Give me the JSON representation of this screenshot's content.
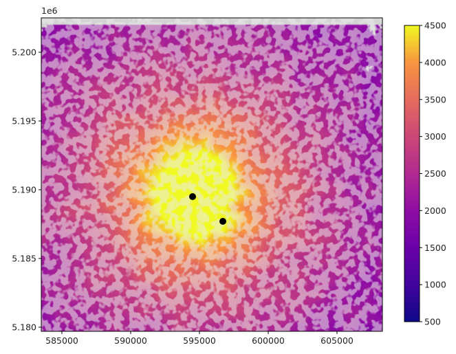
{
  "chart_data": {
    "type": "heatmap",
    "title": "",
    "xlabel": "",
    "ylabel": "",
    "y_offset_label": "1e6",
    "xlim": [
      583500,
      608300
    ],
    "ylim": [
      5179700,
      5202500
    ],
    "x_ticks": [
      585000,
      590000,
      595000,
      600000,
      605000
    ],
    "x_tick_labels": [
      "585000",
      "590000",
      "595000",
      "600000",
      "605000"
    ],
    "y_ticks": [
      5180000,
      5185000,
      5190000,
      5195000,
      5200000
    ],
    "y_tick_labels": [
      "5.180",
      "5.185",
      "5.190",
      "5.195",
      "5.200"
    ],
    "colorbar": {
      "colormap": "plasma",
      "vmin": 500,
      "vmax": 4500,
      "ticks": [
        500,
        1000,
        1500,
        2000,
        2500,
        3000,
        3500,
        4000,
        4500
      ],
      "tick_labels": [
        "500",
        "1000",
        "1500",
        "2000",
        "2500",
        "3000",
        "3500",
        "4000",
        "4500"
      ]
    },
    "nodata_color": "#d3d3d3",
    "peak": {
      "x": 594500,
      "y": 5189700,
      "value": 4350
    },
    "points": [
      {
        "x": 594500,
        "y": 5189500
      },
      {
        "x": 596700,
        "y": 5187700
      }
    ],
    "point_color": "#000000"
  }
}
